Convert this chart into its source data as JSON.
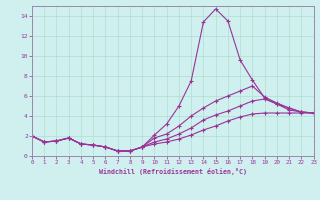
{
  "xlabel": "Windchill (Refroidissement éolien,°C)",
  "background_color": "#cff0ee",
  "line_color": "#993399",
  "grid_color": "#aaddcc",
  "spine_color": "#9988aa",
  "xlim": [
    0,
    23
  ],
  "ylim": [
    0,
    15
  ],
  "xticks": [
    0,
    1,
    2,
    3,
    4,
    5,
    6,
    7,
    8,
    9,
    10,
    11,
    12,
    13,
    14,
    15,
    16,
    17,
    18,
    19,
    20,
    21,
    22,
    23
  ],
  "yticks": [
    0,
    2,
    4,
    6,
    8,
    10,
    12,
    14
  ],
  "series": [
    [
      2.0,
      1.4,
      1.5,
      1.8,
      1.2,
      1.1,
      0.9,
      0.5,
      0.5,
      0.9,
      2.1,
      3.2,
      5.0,
      7.5,
      13.4,
      14.7,
      13.5,
      9.6,
      7.6,
      5.8,
      5.2,
      4.6,
      4.4,
      4.3
    ],
    [
      2.0,
      1.4,
      1.5,
      1.8,
      1.2,
      1.1,
      0.9,
      0.5,
      0.5,
      0.9,
      1.8,
      2.2,
      3.0,
      4.0,
      4.8,
      5.5,
      6.0,
      6.5,
      7.0,
      5.9,
      5.3,
      4.8,
      4.4,
      4.3
    ],
    [
      2.0,
      1.4,
      1.5,
      1.8,
      1.2,
      1.1,
      0.9,
      0.5,
      0.5,
      0.9,
      1.4,
      1.7,
      2.2,
      2.8,
      3.6,
      4.1,
      4.5,
      5.0,
      5.5,
      5.7,
      5.2,
      4.8,
      4.4,
      4.3
    ],
    [
      2.0,
      1.4,
      1.5,
      1.8,
      1.2,
      1.1,
      0.9,
      0.5,
      0.5,
      0.9,
      1.2,
      1.4,
      1.7,
      2.1,
      2.6,
      3.0,
      3.5,
      3.9,
      4.2,
      4.3,
      4.3,
      4.3,
      4.3,
      4.3
    ]
  ]
}
